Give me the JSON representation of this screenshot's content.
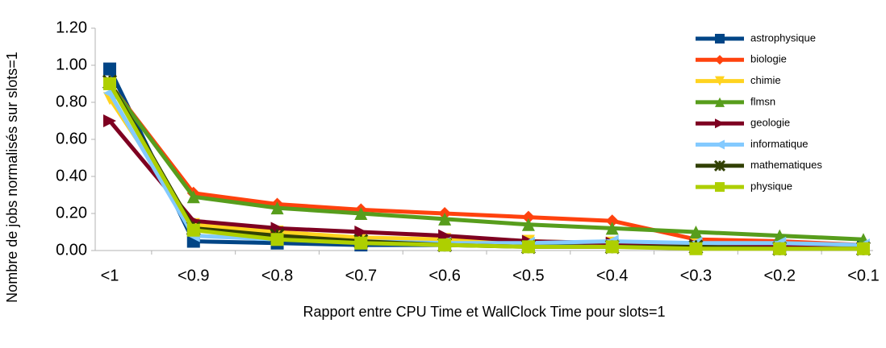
{
  "chart_data": {
    "type": "line",
    "y_label": "Nombre de jobs normalisés sur slots=1",
    "x_label": "Rapport entre CPU Time et WallClock Time pour slots=1",
    "categories": [
      "<1",
      "<0.9",
      "<0.8",
      "<0.7",
      "<0.6",
      "<0.5",
      "<0.4",
      "<0.3",
      "<0.2",
      "<0.1"
    ],
    "ylim": [
      0,
      1.2
    ],
    "yticks": [
      {
        "value": 0,
        "label": "0.00"
      },
      {
        "value": 0.2,
        "label": "0.20"
      },
      {
        "value": 0.4,
        "label": "0.40"
      },
      {
        "value": 0.6,
        "label": "0.60"
      },
      {
        "value": 0.8,
        "label": "0.80"
      },
      {
        "value": 1,
        "label": "1.00"
      },
      {
        "value": 1.2,
        "label": "1.20"
      }
    ],
    "grid": false,
    "legend": "upper right",
    "series": [
      {
        "name": "astrophysique",
        "color": "#004586",
        "marker": "square",
        "values": [
          0.98,
          0.05,
          0.04,
          0.03,
          0.03,
          0.03,
          0.03,
          0.02,
          0.02,
          0.02
        ]
      },
      {
        "name": "biologie",
        "color": "#ff420e",
        "marker": "diamond",
        "values": [
          0.9,
          0.31,
          0.25,
          0.22,
          0.2,
          0.18,
          0.16,
          0.06,
          0.05,
          0.03
        ]
      },
      {
        "name": "chimie",
        "color": "#ffd320",
        "marker": "triangle-down",
        "values": [
          0.82,
          0.14,
          0.1,
          0.07,
          0.06,
          0.05,
          0.04,
          0.03,
          0.02,
          0.01
        ]
      },
      {
        "name": "flmsn",
        "color": "#579d1c",
        "marker": "triangle-up",
        "values": [
          0.9,
          0.29,
          0.23,
          0.2,
          0.17,
          0.14,
          0.12,
          0.1,
          0.08,
          0.06
        ]
      },
      {
        "name": "geologie",
        "color": "#7e0021",
        "marker": "triangle-right",
        "values": [
          0.7,
          0.16,
          0.12,
          0.1,
          0.08,
          0.05,
          0.04,
          0.03,
          0.02,
          0.01
        ]
      },
      {
        "name": "informatique",
        "color": "#83caff",
        "marker": "triangle-left",
        "values": [
          0.85,
          0.08,
          0.06,
          0.05,
          0.04,
          0.04,
          0.05,
          0.04,
          0.04,
          0.03
        ]
      },
      {
        "name": "mathematiques",
        "color": "#314004",
        "marker": "x",
        "values": [
          0.91,
          0.12,
          0.08,
          0.05,
          0.03,
          0.02,
          0.02,
          0.02,
          0.01,
          0.01
        ]
      },
      {
        "name": "physique",
        "color": "#aecf00",
        "marker": "square",
        "values": [
          0.9,
          0.11,
          0.06,
          0.04,
          0.03,
          0.02,
          0.02,
          0.01,
          0.01,
          0.01
        ]
      }
    ]
  }
}
